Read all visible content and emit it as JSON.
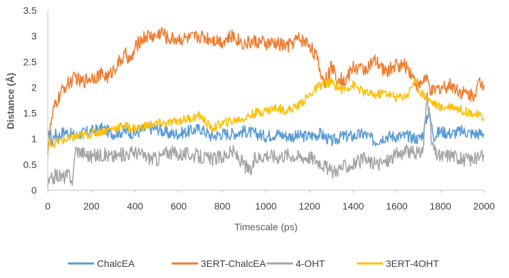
{
  "chart_data": {
    "type": "line",
    "title": "",
    "xlabel": "Timescale (ps)",
    "ylabel": "Distance (Å)",
    "xlim": [
      0,
      2000
    ],
    "ylim": [
      0,
      3.5
    ],
    "x_ticks": [
      "0",
      "200",
      "400",
      "600",
      "800",
      "1000",
      "1200",
      "1400",
      "1600",
      "1800",
      "2000"
    ],
    "y_ticks": [
      "0",
      "0.5",
      "1",
      "1.5",
      "2",
      "2.5",
      "3",
      "3.5"
    ],
    "grid": false,
    "legend_position": "bottom",
    "series": [
      {
        "name": "ChalcEA",
        "color": "#5b9bd5",
        "x": [
          0,
          10,
          20,
          30,
          50,
          75,
          100,
          130,
          150,
          200,
          250,
          300,
          350,
          400,
          450,
          500,
          550,
          600,
          650,
          700,
          750,
          800,
          850,
          900,
          950,
          1000,
          1050,
          1100,
          1150,
          1200,
          1250,
          1300,
          1350,
          1400,
          1450,
          1500,
          1550,
          1600,
          1650,
          1700,
          1720,
          1745,
          1770,
          1800,
          1850,
          1900,
          1950,
          2000
        ],
        "y": [
          1.0,
          1.15,
          0.9,
          1.1,
          1.05,
          1.15,
          1.1,
          1.05,
          1.1,
          1.15,
          1.2,
          1.1,
          1.15,
          1.1,
          1.2,
          1.2,
          1.1,
          1.1,
          1.15,
          1.2,
          1.05,
          1.1,
          1.1,
          1.15,
          1.1,
          1.05,
          1.1,
          1.05,
          1.05,
          1.05,
          1.1,
          0.95,
          1.05,
          1.05,
          1.1,
          0.95,
          1.05,
          1.05,
          1.05,
          1.0,
          1.1,
          1.55,
          1.05,
          1.15,
          1.1,
          1.15,
          1.1,
          1.1
        ]
      },
      {
        "name": "3ERT-ChalcEA",
        "color": "#ed7d31",
        "x": [
          0,
          15,
          30,
          50,
          75,
          100,
          130,
          150,
          200,
          250,
          280,
          300,
          340,
          360,
          380,
          400,
          420,
          450,
          500,
          520,
          550,
          600,
          650,
          700,
          750,
          800,
          850,
          900,
          950,
          1000,
          1050,
          1100,
          1130,
          1150,
          1200,
          1230,
          1250,
          1270,
          1300,
          1330,
          1360,
          1400,
          1450,
          1500,
          1550,
          1600,
          1650,
          1700,
          1730,
          1760,
          1800,
          1850,
          1900,
          1950,
          1980,
          2000
        ],
        "y": [
          0.8,
          1.3,
          1.6,
          1.8,
          2.0,
          2.1,
          2.2,
          2.1,
          2.2,
          2.25,
          2.2,
          2.35,
          2.55,
          2.65,
          2.5,
          2.75,
          2.9,
          3.0,
          3.0,
          3.1,
          2.95,
          2.95,
          2.95,
          3.0,
          2.95,
          2.9,
          3.0,
          2.85,
          2.9,
          2.85,
          2.85,
          2.8,
          2.9,
          2.95,
          2.85,
          2.6,
          2.3,
          2.1,
          2.4,
          2.2,
          2.1,
          2.4,
          2.35,
          2.5,
          2.3,
          2.45,
          2.4,
          2.0,
          2.2,
          1.9,
          2.0,
          2.05,
          1.9,
          1.85,
          2.1,
          2.05
        ]
      },
      {
        "name": "4-OHT",
        "color": "#a5a5a5",
        "x": [
          0,
          15,
          40,
          70,
          100,
          115,
          125,
          150,
          200,
          250,
          300,
          350,
          400,
          450,
          500,
          550,
          600,
          650,
          700,
          750,
          800,
          850,
          900,
          930,
          950,
          1000,
          1050,
          1100,
          1150,
          1200,
          1250,
          1300,
          1350,
          1400,
          1450,
          1500,
          1550,
          1600,
          1650,
          1700,
          1720,
          1740,
          1760,
          1780,
          1800,
          1850,
          1900,
          1950,
          2000
        ],
        "y": [
          0.1,
          0.2,
          0.3,
          0.25,
          0.3,
          0.15,
          0.8,
          0.75,
          0.65,
          0.7,
          0.65,
          0.7,
          0.75,
          0.65,
          0.6,
          0.75,
          0.7,
          0.7,
          0.65,
          0.6,
          0.65,
          0.75,
          0.5,
          0.35,
          0.6,
          0.7,
          0.65,
          0.7,
          0.65,
          0.65,
          0.55,
          0.35,
          0.45,
          0.5,
          0.6,
          0.5,
          0.55,
          0.7,
          0.75,
          0.7,
          0.8,
          1.9,
          0.9,
          0.7,
          0.65,
          0.7,
          0.6,
          0.6,
          0.65
        ]
      },
      {
        "name": "3ERT-4OHT",
        "color": "#ffc000",
        "x": [
          0,
          20,
          50,
          100,
          150,
          200,
          250,
          300,
          350,
          400,
          450,
          500,
          550,
          600,
          650,
          700,
          750,
          800,
          850,
          900,
          950,
          1000,
          1050,
          1100,
          1150,
          1200,
          1250,
          1300,
          1350,
          1400,
          1450,
          1500,
          1550,
          1600,
          1650,
          1680,
          1700,
          1750,
          1800,
          1850,
          1900,
          1950,
          2000
        ],
        "y": [
          0.95,
          0.9,
          0.95,
          1.0,
          1.05,
          1.1,
          1.15,
          1.2,
          1.25,
          1.2,
          1.25,
          1.3,
          1.3,
          1.35,
          1.4,
          1.45,
          1.2,
          1.3,
          1.35,
          1.4,
          1.5,
          1.55,
          1.6,
          1.55,
          1.65,
          1.85,
          2.05,
          2.1,
          1.95,
          2.05,
          1.9,
          1.85,
          1.9,
          1.8,
          1.85,
          2.15,
          1.95,
          1.75,
          1.6,
          1.65,
          1.55,
          1.5,
          1.4
        ]
      }
    ]
  }
}
